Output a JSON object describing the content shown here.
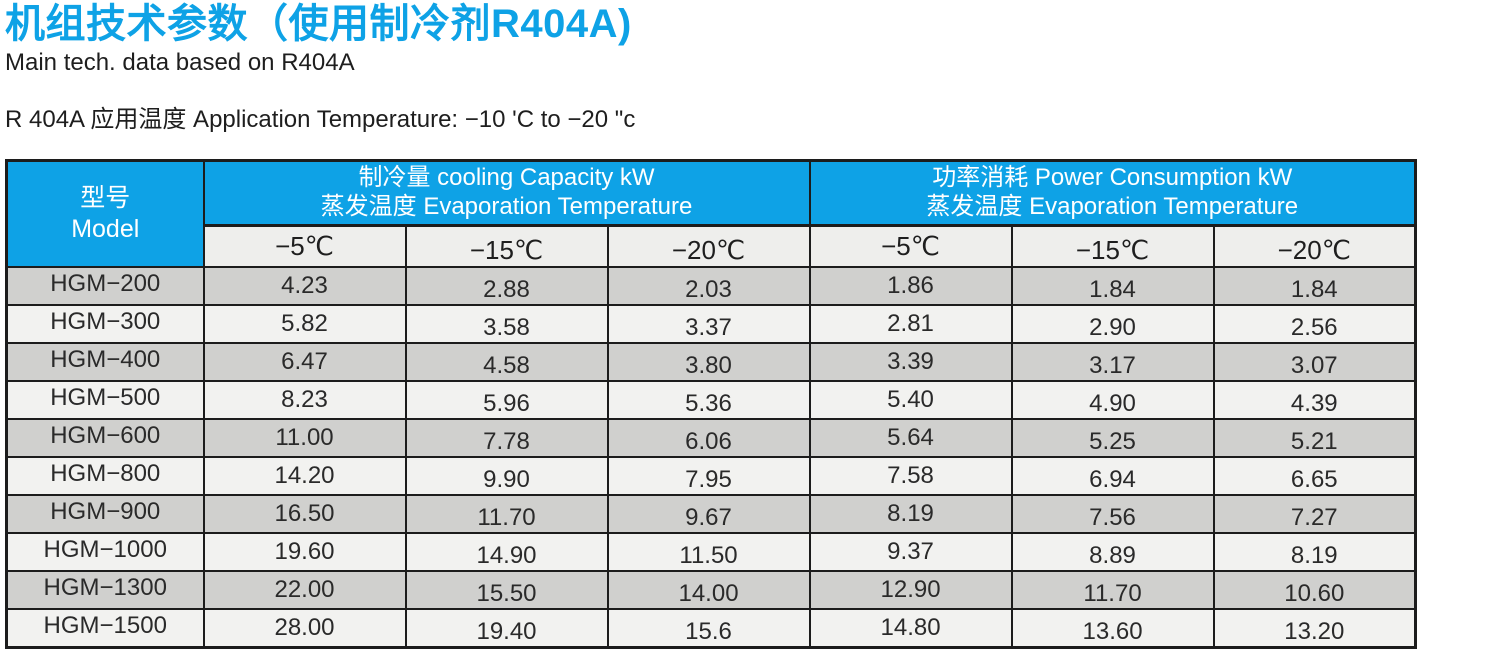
{
  "page": {
    "title": "机组技术参数（使用制冷剂R404A)",
    "subtitle": "Main tech. data based on R404A",
    "application_line": "R 404A 应用温度 Application Temperature: −10 'C to −20 \"c"
  },
  "table": {
    "model_header": {
      "zh": "型号",
      "en": "Model"
    },
    "groups": [
      {
        "line1": "制冷量 cooling Capacity kW",
        "line2": "蒸发温度 Evaporation Temperature"
      },
      {
        "line1": "功率消耗 Power Consumption kW",
        "line2": "蒸发温度 Evaporation Temperature"
      }
    ],
    "temp_columns": [
      "−5℃",
      "−15℃",
      "−20℃",
      "−5℃",
      "−15℃",
      "−20℃"
    ],
    "rows": [
      {
        "model": "HGM−200",
        "values": [
          "4.23",
          "2.88",
          "2.03",
          "1.86",
          "1.84",
          "1.84"
        ]
      },
      {
        "model": "HGM−300",
        "values": [
          "5.82",
          "3.58",
          "3.37",
          "2.81",
          "2.90",
          "2.56"
        ]
      },
      {
        "model": "HGM−400",
        "values": [
          "6.47",
          "4.58",
          "3.80",
          "3.39",
          "3.17",
          "3.07"
        ]
      },
      {
        "model": "HGM−500",
        "values": [
          "8.23",
          "5.96",
          "5.36",
          "5.40",
          "4.90",
          "4.39"
        ]
      },
      {
        "model": "HGM−600",
        "values": [
          "11.00",
          "7.78",
          "6.06",
          "5.64",
          "5.25",
          "5.21"
        ]
      },
      {
        "model": "HGM−800",
        "values": [
          "14.20",
          "9.90",
          "7.95",
          "7.58",
          "6.94",
          "6.65"
        ]
      },
      {
        "model": "HGM−900",
        "values": [
          "16.50",
          "11.70",
          "9.67",
          "8.19",
          "7.56",
          "7.27"
        ]
      },
      {
        "model": "HGM−1000",
        "values": [
          "19.60",
          "14.90",
          "11.50",
          "9.37",
          "8.89",
          "8.19"
        ]
      },
      {
        "model": "HGM−1300",
        "values": [
          "22.00",
          "15.50",
          "14.00",
          "12.90",
          "11.70",
          "10.60"
        ]
      },
      {
        "model": "HGM−1500",
        "values": [
          "28.00",
          "19.40",
          "15.6",
          "14.80",
          "13.60",
          "13.20"
        ]
      }
    ]
  },
  "colors": {
    "accent_blue": "#0ea2e6",
    "border": "#1c1c1c",
    "row_gray": "#d0d0ce",
    "row_light": "#f2f2f0",
    "subheader_bg": "#eeeeec",
    "title_text": "#0ea2e6"
  }
}
